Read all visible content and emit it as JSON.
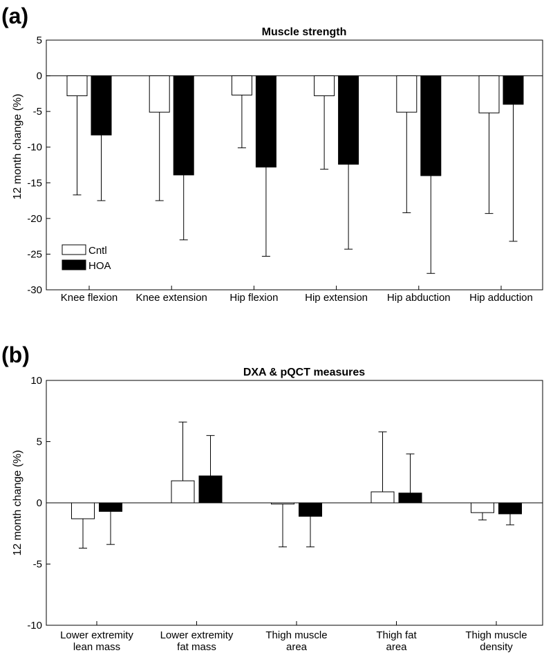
{
  "chart_data": [
    {
      "panel": "(a)",
      "type": "bar",
      "title": "Muscle strength",
      "xlabel": "",
      "ylabel": "12 month change (%)",
      "ylim": [
        -30,
        5
      ],
      "yticks": [
        "5",
        "0",
        "-5",
        "-10",
        "-15",
        "-20",
        "-25",
        "-30"
      ],
      "categories": [
        "Knee flexion",
        "Knee extension",
        "Hip flexion",
        "Hip extension",
        "Hip abduction",
        "Hip adduction"
      ],
      "series": [
        {
          "name": "Cntl",
          "color": "#ffffff",
          "values": [
            -2.8,
            -5.1,
            -2.7,
            -2.8,
            -5.1,
            -5.2
          ],
          "error_low": [
            -16.7,
            -17.5,
            -10.1,
            -13.1,
            -19.2,
            -19.3
          ]
        },
        {
          "name": "HOA",
          "color": "#000000",
          "values": [
            -8.3,
            -13.9,
            -12.8,
            -12.4,
            -14.0,
            -4.0
          ],
          "error_low": [
            -17.5,
            -23.0,
            -25.3,
            -24.3,
            -27.7,
            -23.2
          ]
        }
      ],
      "legend": {
        "position": "lower-left",
        "entries": [
          "Cntl",
          "HOA"
        ]
      }
    },
    {
      "panel": "(b)",
      "type": "bar",
      "title": "DXA & pQCT measures",
      "xlabel": "",
      "ylabel": "12 month change (%)",
      "ylim": [
        -10,
        10
      ],
      "yticks": [
        "10",
        "5",
        "0",
        "-5",
        "-10"
      ],
      "categories": [
        [
          "Lower extremity",
          "lean mass"
        ],
        [
          "Lower extremity",
          "fat mass"
        ],
        [
          "Thigh muscle",
          "area"
        ],
        [
          "Thigh fat",
          "area"
        ],
        [
          "Thigh muscle",
          "density"
        ]
      ],
      "series": [
        {
          "name": "Cntl",
          "color": "#ffffff",
          "values": [
            -1.3,
            1.8,
            -0.1,
            0.9,
            -0.8
          ],
          "error_low": [
            -3.7,
            null,
            -3.6,
            null,
            -1.4
          ],
          "error_high": [
            null,
            6.6,
            null,
            5.8,
            null
          ]
        },
        {
          "name": "HOA",
          "color": "#000000",
          "values": [
            -0.7,
            2.2,
            -1.1,
            0.8,
            -0.9
          ],
          "error_low": [
            -3.4,
            null,
            -3.6,
            null,
            -1.8
          ],
          "error_high": [
            null,
            5.5,
            null,
            4.0,
            null
          ]
        }
      ]
    }
  ]
}
